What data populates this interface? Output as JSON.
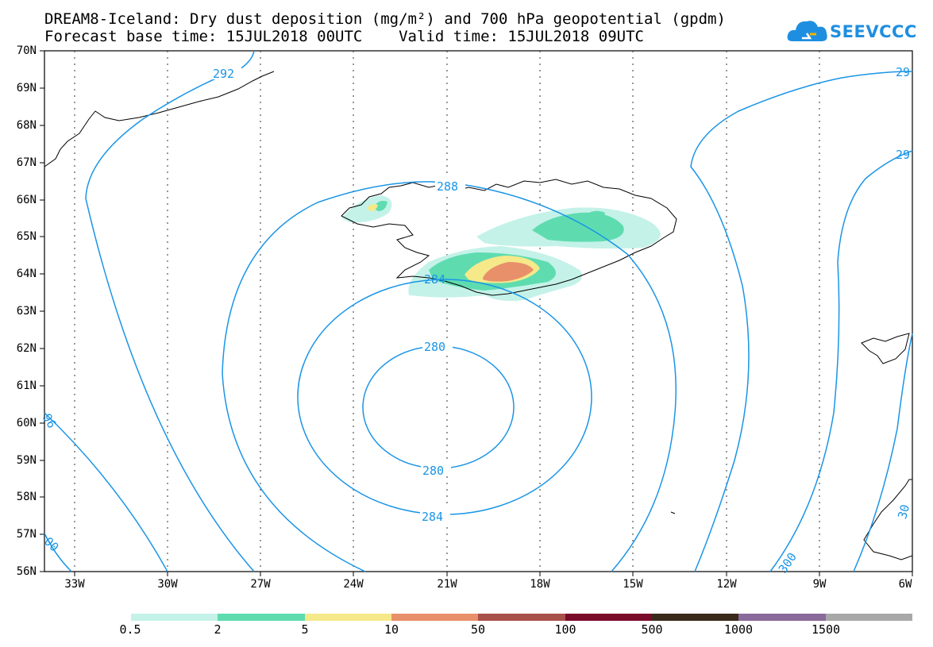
{
  "title": {
    "line1": "DREAM8-Iceland: Dry dust deposition (mg/m²) and 700 hPa geopotential (gpdm)",
    "line2": "Forecast base time: 15JUL2018 00UTC    Valid time: 15JUL2018 09UTC"
  },
  "logo": {
    "text": "SEEVCCC",
    "icon": "cloud-icon"
  },
  "axes": {
    "lat_labels": [
      "70N",
      "69N",
      "68N",
      "67N",
      "66N",
      "65N",
      "64N",
      "63N",
      "62N",
      "61N",
      "60N",
      "59N",
      "58N",
      "57N",
      "56N"
    ],
    "lon_labels": [
      "33W",
      "30W",
      "27W",
      "24W",
      "21W",
      "18W",
      "15W",
      "12W",
      "9W",
      "6W"
    ]
  },
  "contour_labels": {
    "c292": "292",
    "c288": "288",
    "c284a": "284",
    "c280a": "280",
    "c280b": "280",
    "c284b": "284",
    "c300": "300",
    "c96": "96",
    "c00": "00",
    "c29a": "29",
    "c29b": "29",
    "c30": "30"
  },
  "colorbar": {
    "labels": [
      "0.5",
      "2",
      "5",
      "10",
      "50",
      "100",
      "500",
      "1000",
      "1500"
    ],
    "colors": [
      "#c4f2e8",
      "#5edcb0",
      "#f5e98a",
      "#e8906a",
      "#a8504a",
      "#7a0a2a",
      "#3a2a1a",
      "#8a6a9a",
      "#a8a8a8"
    ]
  },
  "colors": {
    "contour": "#1a95e6",
    "accent": "#1e8fe0"
  }
}
